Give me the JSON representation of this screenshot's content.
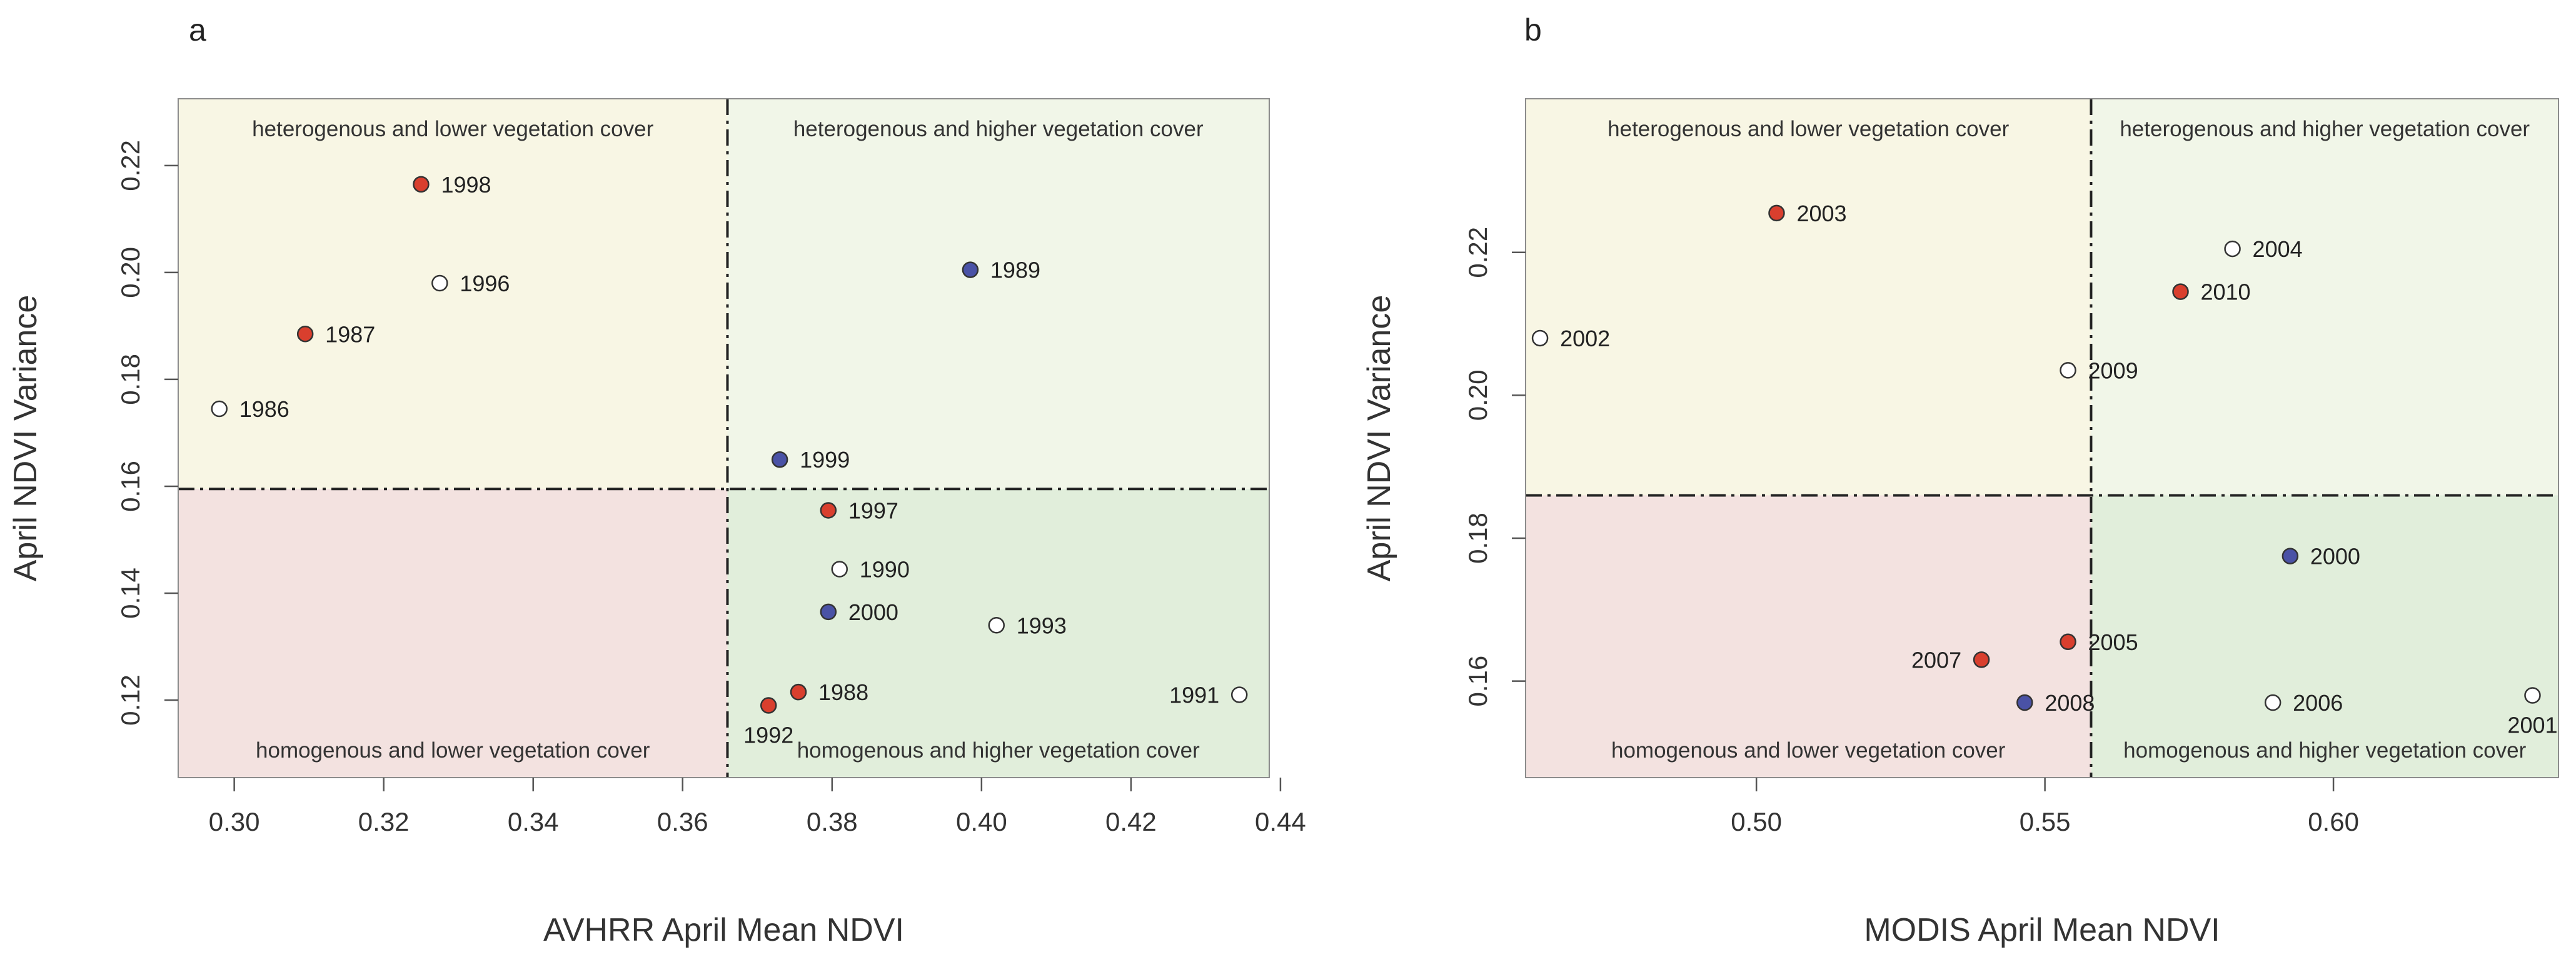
{
  "chart_data": [
    {
      "panel": "a",
      "type": "scatter",
      "xlabel": "AVHRR April Mean NDVI",
      "ylabel": "April NDVI Variance",
      "xlim": [
        0.2925,
        0.4385
      ],
      "ylim": [
        0.1055,
        0.2325
      ],
      "xticks": [
        "0.30",
        "0.32",
        "0.34",
        "0.36",
        "0.38",
        "0.40",
        "0.42",
        "0.44"
      ],
      "yticks": [
        "0.12",
        "0.14",
        "0.16",
        "0.18",
        "0.20",
        "0.22"
      ],
      "threshold_x": 0.366,
      "threshold_y": 0.1595,
      "quadrant_labels": {
        "top_left": "heterogenous and lower vegetation cover",
        "top_right": "heterogenous and higher vegetation cover",
        "bottom_left": "homogenous and lower vegetation cover",
        "bottom_right": "homogenous and higher vegetation cover"
      },
      "quadrant_colors": {
        "top_left": "#f8f6e4",
        "top_right": "#f1f6e8",
        "bottom_left": "#f3e2e0",
        "bottom_right": "#e1eedb"
      },
      "points": [
        {
          "label": "1998",
          "x": 0.325,
          "y": 0.2165,
          "color": "#d93f2e",
          "label_pos": "right"
        },
        {
          "label": "1996",
          "x": 0.3275,
          "y": 0.198,
          "color": "#ffffff",
          "label_pos": "right"
        },
        {
          "label": "1987",
          "x": 0.3095,
          "y": 0.1885,
          "color": "#d93f2e",
          "label_pos": "right"
        },
        {
          "label": "1986",
          "x": 0.298,
          "y": 0.1745,
          "color": "#ffffff",
          "label_pos": "right"
        },
        {
          "label": "1989",
          "x": 0.3985,
          "y": 0.2005,
          "color": "#4a52a6",
          "label_pos": "right"
        },
        {
          "label": "1999",
          "x": 0.373,
          "y": 0.165,
          "color": "#4a52a6",
          "label_pos": "right"
        },
        {
          "label": "1997",
          "x": 0.3795,
          "y": 0.1555,
          "color": "#d93f2e",
          "label_pos": "right"
        },
        {
          "label": "1990",
          "x": 0.381,
          "y": 0.1445,
          "color": "#ffffff",
          "label_pos": "right"
        },
        {
          "label": "2000",
          "x": 0.3795,
          "y": 0.1365,
          "color": "#4a52a6",
          "label_pos": "right"
        },
        {
          "label": "1993",
          "x": 0.402,
          "y": 0.134,
          "color": "#ffffff",
          "label_pos": "right"
        },
        {
          "label": "1988",
          "x": 0.3755,
          "y": 0.1215,
          "color": "#d93f2e",
          "label_pos": "right"
        },
        {
          "label": "1992",
          "x": 0.3715,
          "y": 0.119,
          "color": "#d93f2e",
          "label_pos": "below"
        },
        {
          "label": "1991",
          "x": 0.4345,
          "y": 0.121,
          "color": "#ffffff",
          "label_pos": "left"
        }
      ]
    },
    {
      "panel": "b",
      "type": "scatter",
      "xlabel": "MODIS April Mean NDVI",
      "ylabel": "April NDVI Variance",
      "xlim": [
        0.46,
        0.639
      ],
      "ylim": [
        0.1465,
        0.2415
      ],
      "xticks": [
        "0.50",
        "0.55",
        "0.60"
      ],
      "yticks": [
        "0.16",
        "0.18",
        "0.20",
        "0.22"
      ],
      "threshold_x": 0.558,
      "threshold_y": 0.186,
      "quadrant_labels": {
        "top_left": "heterogenous and lower vegetation cover",
        "top_right": "heterogenous and higher vegetation cover",
        "bottom_left": "homogenous and lower vegetation cover",
        "bottom_right": "homogenous and higher vegetation cover"
      },
      "quadrant_colors": {
        "top_left": "#f8f6e4",
        "top_right": "#f1f6e8",
        "bottom_left": "#f3e2e0",
        "bottom_right": "#e1eedb"
      },
      "points": [
        {
          "label": "2003",
          "x": 0.5035,
          "y": 0.2255,
          "color": "#d93f2e",
          "label_pos": "right"
        },
        {
          "label": "2002",
          "x": 0.4625,
          "y": 0.208,
          "color": "#ffffff",
          "label_pos": "right"
        },
        {
          "label": "2004",
          "x": 0.5825,
          "y": 0.2205,
          "color": "#ffffff",
          "label_pos": "right"
        },
        {
          "label": "2010",
          "x": 0.5735,
          "y": 0.2145,
          "color": "#d93f2e",
          "label_pos": "right"
        },
        {
          "label": "2009",
          "x": 0.554,
          "y": 0.2035,
          "color": "#ffffff",
          "label_pos": "right"
        },
        {
          "label": "2000",
          "x": 0.5925,
          "y": 0.1775,
          "color": "#4a52a6",
          "label_pos": "right"
        },
        {
          "label": "2007",
          "x": 0.539,
          "y": 0.163,
          "color": "#d93f2e",
          "label_pos": "left"
        },
        {
          "label": "2005",
          "x": 0.554,
          "y": 0.1655,
          "color": "#d93f2e",
          "label_pos": "right"
        },
        {
          "label": "2008",
          "x": 0.5465,
          "y": 0.157,
          "color": "#4a52a6",
          "label_pos": "right"
        },
        {
          "label": "2006",
          "x": 0.5895,
          "y": 0.157,
          "color": "#ffffff",
          "label_pos": "right"
        },
        {
          "label": "2001",
          "x": 0.6345,
          "y": 0.158,
          "color": "#ffffff",
          "label_pos": "below"
        }
      ]
    }
  ]
}
